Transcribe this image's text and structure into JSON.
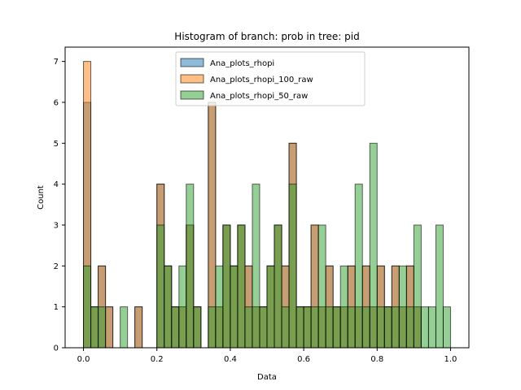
{
  "chart_data": {
    "type": "bar",
    "title": "Histogram of branch: prob in tree: pid",
    "xlabel": "Data",
    "ylabel": "Count",
    "xlim": [
      -0.05,
      1.05
    ],
    "ylim": [
      0,
      7.35
    ],
    "xticks": [
      "0.0",
      "0.2",
      "0.4",
      "0.6",
      "0.8",
      "1.0"
    ],
    "yticks": [
      "0",
      "1",
      "2",
      "3",
      "4",
      "5",
      "6",
      "7"
    ],
    "bin_start": 0.0,
    "bin_width": 0.02,
    "legend_loc": "upper center",
    "series": [
      {
        "name": "Ana_plots_rhopi",
        "color": "#1f77b4",
        "values": [
          6,
          1,
          2,
          1,
          0,
          0,
          0,
          1,
          0,
          0,
          4,
          2,
          1,
          1,
          3,
          1,
          0,
          6,
          1,
          3,
          2,
          3,
          2,
          1,
          1,
          2,
          3,
          2,
          5,
          1,
          1,
          3,
          1,
          2,
          1,
          1,
          2,
          1,
          2,
          1,
          2,
          1,
          2,
          1,
          2,
          1
        ]
      },
      {
        "name": "Ana_plots_rhopi_100_raw",
        "color": "#ff7f0e",
        "values": [
          7,
          1,
          2,
          1,
          0,
          0,
          0,
          1,
          0,
          0,
          4,
          2,
          1,
          1,
          3,
          1,
          0,
          6,
          1,
          3,
          2,
          3,
          2,
          1,
          1,
          2,
          3,
          2,
          5,
          1,
          1,
          3,
          1,
          2,
          1,
          1,
          2,
          1,
          2,
          1,
          2,
          1,
          2,
          1,
          2,
          1
        ]
      },
      {
        "name": "Ana_plots_rhopi_50_raw",
        "color": "#2ca02c",
        "values": [
          2,
          1,
          1,
          0,
          0,
          1,
          0,
          0,
          0,
          0,
          3,
          2,
          1,
          2,
          4,
          1,
          0,
          1,
          2,
          3,
          2,
          3,
          1,
          4,
          1,
          2,
          3,
          1,
          4,
          1,
          1,
          1,
          3,
          1,
          1,
          2,
          1,
          4,
          1,
          5,
          1,
          1,
          1,
          2,
          1,
          3,
          1,
          1,
          3,
          1
        ]
      }
    ]
  }
}
